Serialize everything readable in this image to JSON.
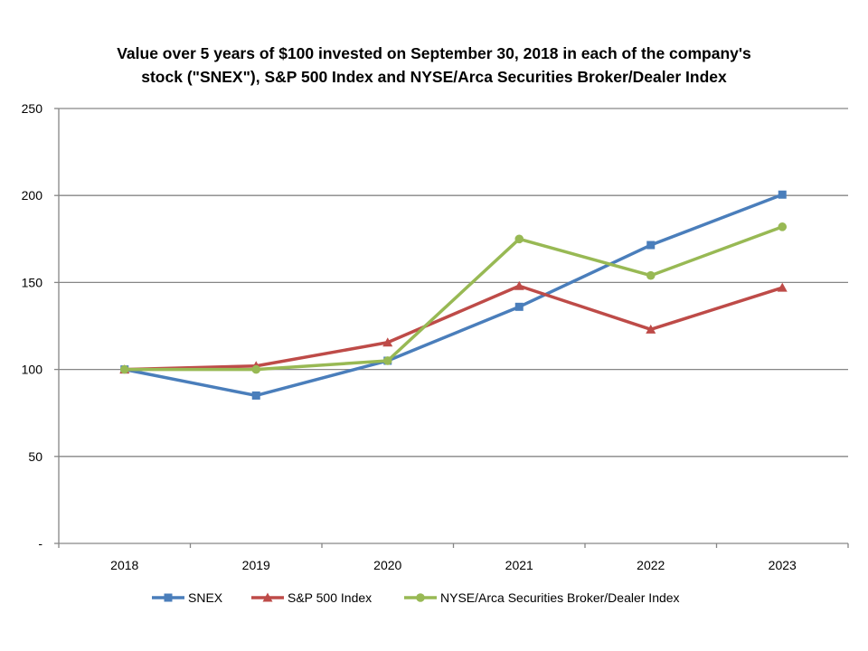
{
  "chart_data": {
    "type": "line",
    "title_line1": "Value over 5 years of $100 invested on September 30, 2018 in each of the company's",
    "title_line2": "stock (\"SNEX\"), S&P 500 Index and NYSE/Arca Securities Broker/Dealer Index",
    "categories": [
      "2018",
      "2019",
      "2020",
      "2021",
      "2022",
      "2023"
    ],
    "ylim": [
      0,
      250
    ],
    "yticks": [
      0,
      50,
      100,
      150,
      200,
      250
    ],
    "ytick_labels": [
      "-",
      "50",
      "100",
      "150",
      "200",
      "250"
    ],
    "grid": true,
    "legend_position": "bottom",
    "series": [
      {
        "name": "SNEX",
        "color": "#4a7ebb",
        "marker": "square",
        "values": [
          100,
          85,
          105,
          136,
          171.5,
          200.5
        ]
      },
      {
        "name": "S&P 500 Index",
        "color": "#be4b48",
        "marker": "triangle",
        "values": [
          100,
          102,
          115.5,
          148,
          123,
          147
        ]
      },
      {
        "name": "NYSE/Arca Securities Broker/Dealer Index",
        "color": "#98b954",
        "marker": "circle",
        "values": [
          100,
          100,
          105,
          175,
          154,
          182
        ]
      }
    ]
  }
}
